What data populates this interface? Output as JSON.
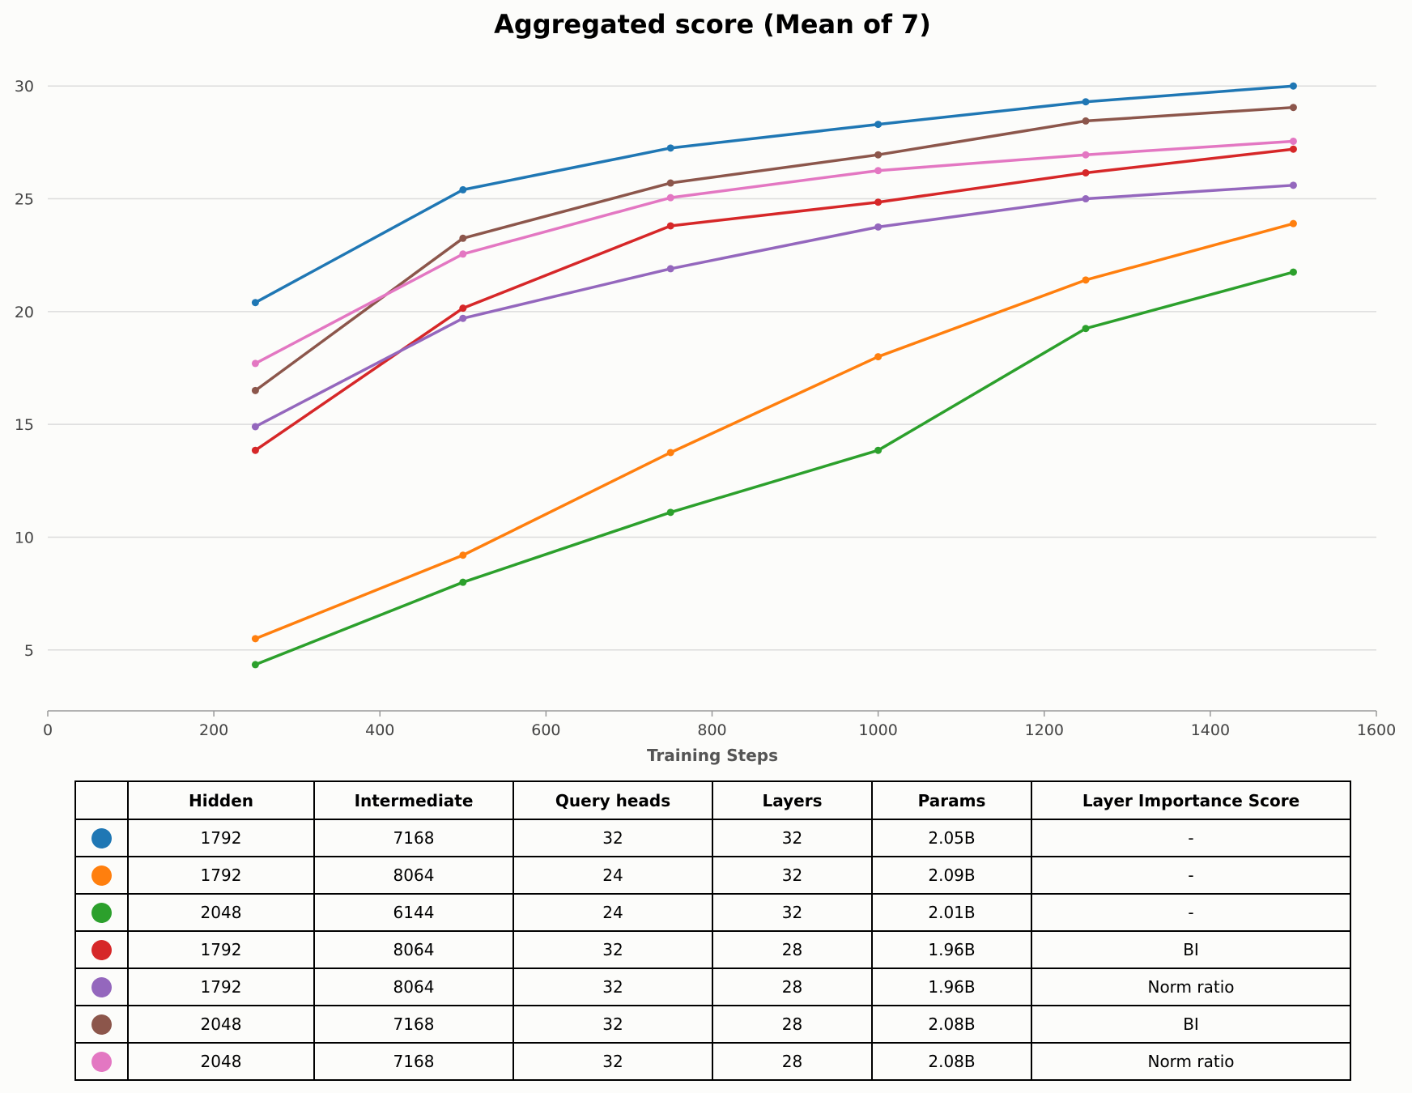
{
  "chart_data": {
    "type": "line",
    "title": "Aggregated score (Mean of 7)",
    "xlabel": "Training Steps",
    "ylabel": "",
    "xlim": [
      0,
      1600
    ],
    "ylim": [
      2.3,
      31.3
    ],
    "xticks": [
      0,
      200,
      400,
      600,
      800,
      1000,
      1200,
      1400,
      1600
    ],
    "yticks": [
      5,
      10,
      15,
      20,
      25,
      30
    ],
    "grid": "horizontal",
    "x": [
      250,
      500,
      750,
      1000,
      1250,
      1500
    ],
    "series": [
      {
        "color": "#1f77b4",
        "values": [
          20.4,
          25.4,
          27.25,
          28.3,
          29.3,
          30.0
        ]
      },
      {
        "color": "#ff7f0e",
        "values": [
          5.5,
          9.2,
          13.75,
          18.0,
          21.4,
          23.9
        ]
      },
      {
        "color": "#2ca02c",
        "values": [
          4.35,
          8.0,
          11.1,
          13.85,
          19.25,
          21.75
        ]
      },
      {
        "color": "#d62728",
        "values": [
          13.85,
          20.15,
          23.8,
          24.85,
          26.15,
          27.2
        ]
      },
      {
        "color": "#9467bd",
        "values": [
          14.9,
          19.7,
          21.9,
          23.75,
          25.0,
          25.6
        ]
      },
      {
        "color": "#8c564b",
        "values": [
          16.5,
          23.25,
          25.7,
          26.95,
          28.45,
          29.05
        ]
      },
      {
        "color": "#e377c2",
        "values": [
          17.7,
          22.55,
          25.05,
          26.25,
          26.95,
          27.55
        ]
      }
    ]
  },
  "table": {
    "headers": [
      "",
      "Hidden",
      "Intermediate",
      "Query heads",
      "Layers",
      "Params",
      "Layer Importance Score"
    ],
    "rows": [
      {
        "color": "#1f77b4",
        "hidden": "1792",
        "intermediate": "7168",
        "query_heads": "32",
        "layers": "32",
        "params": "2.05B",
        "score": "-"
      },
      {
        "color": "#ff7f0e",
        "hidden": "1792",
        "intermediate": "8064",
        "query_heads": "24",
        "layers": "32",
        "params": "2.09B",
        "score": "-"
      },
      {
        "color": "#2ca02c",
        "hidden": "2048",
        "intermediate": "6144",
        "query_heads": "24",
        "layers": "32",
        "params": "2.01B",
        "score": "-"
      },
      {
        "color": "#d62728",
        "hidden": "1792",
        "intermediate": "8064",
        "query_heads": "32",
        "layers": "28",
        "params": "1.96B",
        "score": "BI"
      },
      {
        "color": "#9467bd",
        "hidden": "1792",
        "intermediate": "8064",
        "query_heads": "32",
        "layers": "28",
        "params": "1.96B",
        "score": "Norm ratio"
      },
      {
        "color": "#8c564b",
        "hidden": "2048",
        "intermediate": "7168",
        "query_heads": "32",
        "layers": "28",
        "params": "2.08B",
        "score": "BI"
      },
      {
        "color": "#e377c2",
        "hidden": "2048",
        "intermediate": "7168",
        "query_heads": "32",
        "layers": "28",
        "params": "2.08B",
        "score": "Norm ratio"
      }
    ]
  }
}
